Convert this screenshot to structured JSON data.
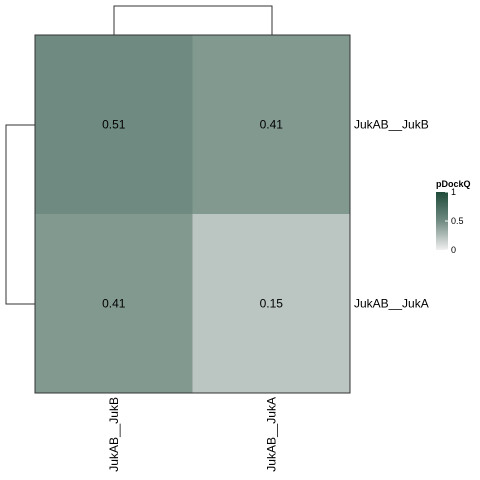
{
  "chart_data": {
    "type": "heatmap",
    "rows": [
      "JukAB__JukB",
      "JukAB__JukA"
    ],
    "columns": [
      "JukAB__JukB",
      "JukAB__JukA"
    ],
    "values": [
      [
        0.51,
        0.41
      ],
      [
        0.41,
        0.15
      ]
    ],
    "cell_labels": [
      [
        "0.51",
        "0.41"
      ],
      [
        "0.41",
        "0.15"
      ]
    ],
    "legend": {
      "title": "pDockQ",
      "ticks": [
        "1",
        "0.5",
        "0"
      ],
      "tick_values": [
        1,
        0.5,
        0
      ],
      "range": [
        0,
        1
      ],
      "color_low": "#f0f0f0",
      "color_high": "#1f4a3a"
    },
    "dendrograms": {
      "rows": true,
      "columns": true
    },
    "legend_position": "right"
  }
}
